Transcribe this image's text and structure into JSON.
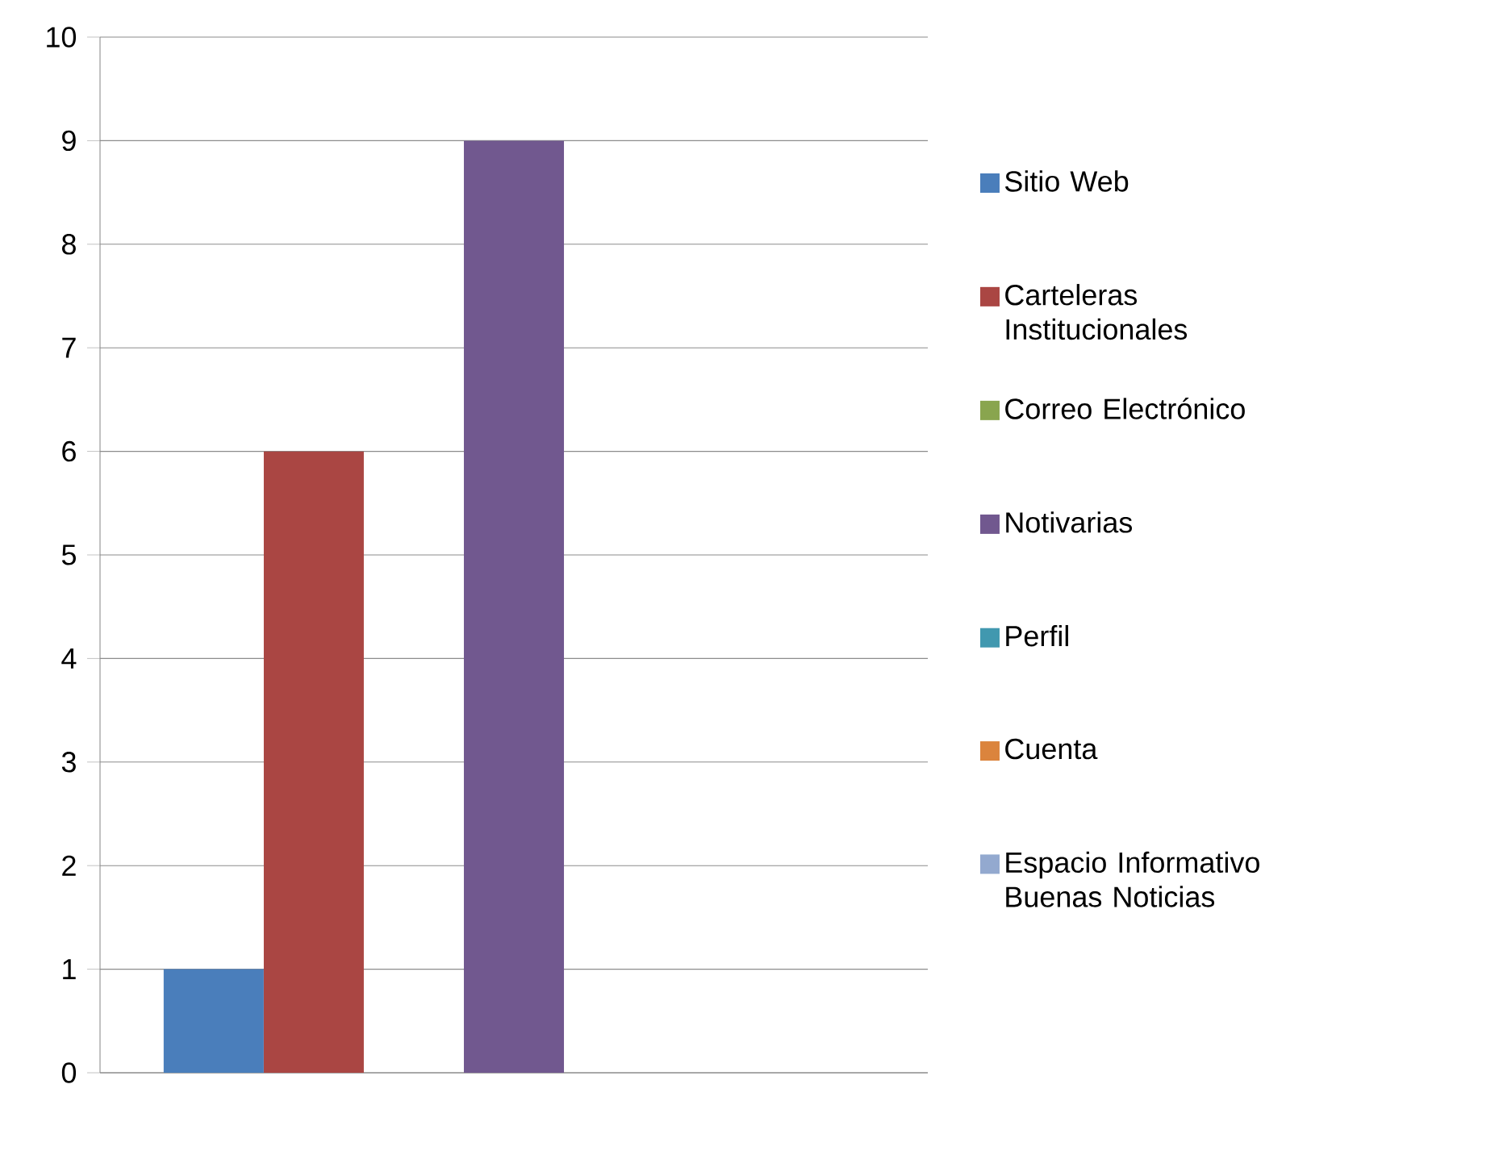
{
  "chart_data": {
    "type": "bar",
    "categories": [
      null
    ],
    "series": [
      {
        "name": "Sitio Web",
        "color": "#4a7ebb",
        "values": [
          1
        ]
      },
      {
        "name": "Carteleras Institucionales",
        "color": "#aa4643",
        "values": [
          6
        ]
      },
      {
        "name": "Correo Electrónico",
        "color": "#89a54e",
        "values": [
          0
        ]
      },
      {
        "name": "Notivarias",
        "color": "#71588f",
        "values": [
          9
        ]
      },
      {
        "name": "Perfil",
        "color": "#4198af",
        "values": [
          0
        ]
      },
      {
        "name": "Cuenta",
        "color": "#db843d",
        "values": [
          0
        ]
      },
      {
        "name": "Espacio Informativo Buenas Noticias",
        "color": "#93a9cf",
        "values": [
          0
        ]
      }
    ],
    "ylim": [
      0,
      10
    ],
    "yticks": [
      0,
      1,
      2,
      3,
      4,
      5,
      6,
      7,
      8,
      9,
      10
    ],
    "grid": "y",
    "legend": "right"
  }
}
